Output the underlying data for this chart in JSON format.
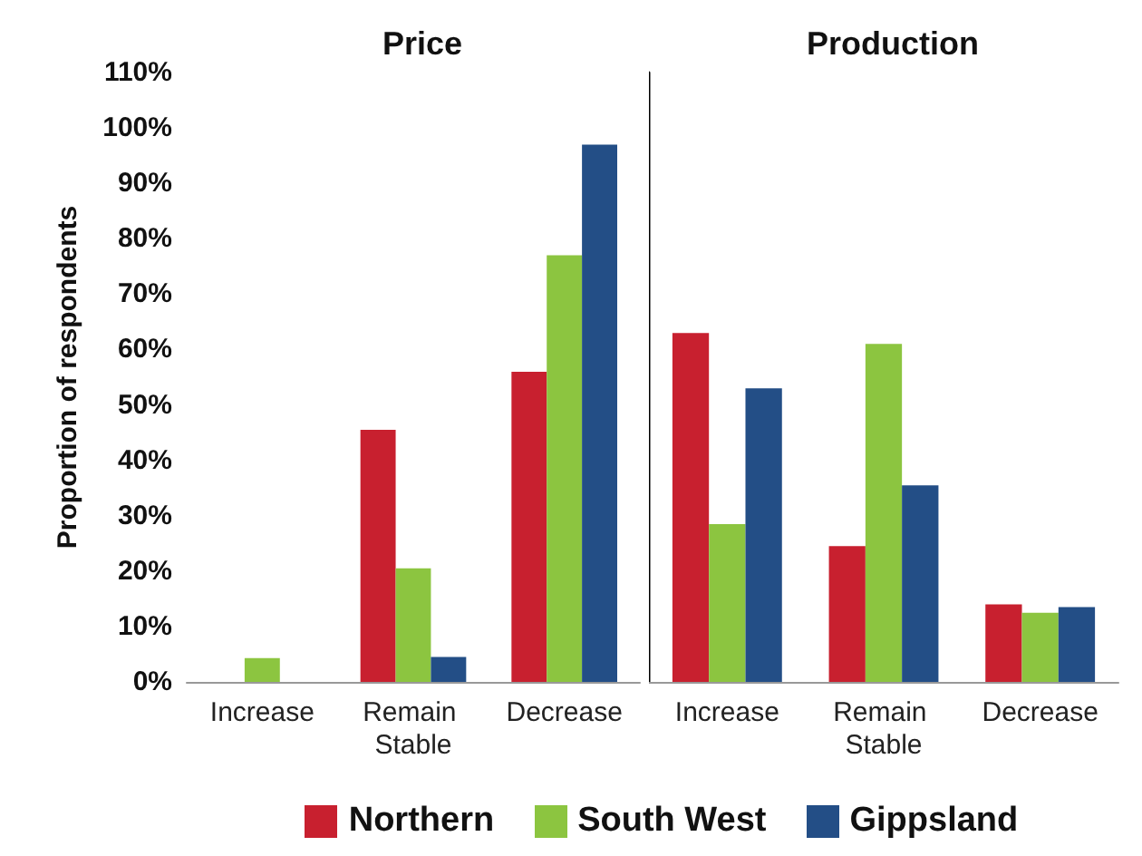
{
  "chart_data": [
    {
      "type": "bar",
      "title": "Price",
      "ylabel": "Proportion of respondents",
      "categories": [
        "Increase",
        "Remain Stable",
        "Decrease"
      ],
      "series": [
        {
          "name": "Northern",
          "color": "#c8202f",
          "values": [
            0,
            45.5,
            56
          ]
        },
        {
          "name": "South West",
          "color": "#8cc540",
          "values": [
            4.3,
            20.5,
            77
          ]
        },
        {
          "name": "Gippsland",
          "color": "#234e86",
          "values": [
            0,
            4.5,
            97
          ]
        }
      ],
      "ylim": [
        0,
        110
      ],
      "yticks": [
        {
          "value": 0,
          "label": "0%"
        },
        {
          "value": 10,
          "label": "10%"
        },
        {
          "value": 20,
          "label": "20%"
        },
        {
          "value": 30,
          "label": "30%"
        },
        {
          "value": 40,
          "label": "40%"
        },
        {
          "value": 50,
          "label": "50%"
        },
        {
          "value": 60,
          "label": "60%"
        },
        {
          "value": 70,
          "label": "70%"
        },
        {
          "value": 80,
          "label": "80%"
        },
        {
          "value": 90,
          "label": "90%"
        },
        {
          "value": 100,
          "label": "100%"
        },
        {
          "value": 110,
          "label": "110%"
        }
      ],
      "legend": "bottom"
    },
    {
      "type": "bar",
      "title": "Production",
      "categories": [
        "Increase",
        "Remain Stable",
        "Decrease"
      ],
      "series": [
        {
          "color": "#c8202f",
          "values": [
            63,
            24.5,
            14
          ]
        },
        {
          "color": "#8cc540",
          "values": [
            28.5,
            61,
            12.5
          ]
        },
        {
          "color": "#234e86",
          "values": [
            53,
            35.5,
            13.5
          ]
        }
      ],
      "ylim": [
        0,
        110
      ],
      "tick_labels": "x"
    }
  ]
}
